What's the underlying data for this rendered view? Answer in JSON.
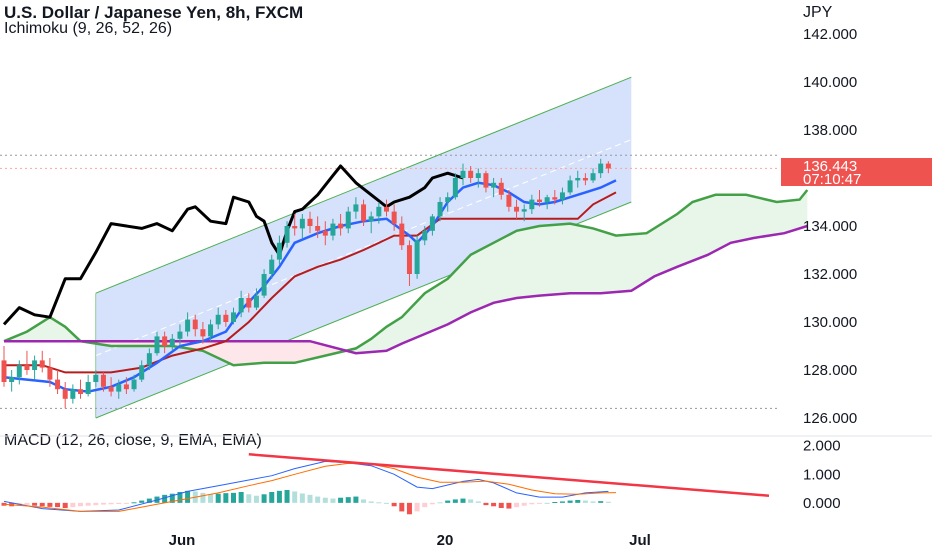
{
  "header": {
    "title": "U.S. Dollar / Japanese Yen, 8h, FXCM",
    "indicator": "Ichimoku (9, 26, 52, 26)",
    "macd_label": "MACD (12, 26, close, 9, EMA, EMA)",
    "currency": "JPY"
  },
  "current_price": {
    "price": "136.443",
    "countdown": "07:10:47"
  },
  "colors": {
    "up": "#26a69a",
    "down": "#ef5350",
    "conversion": "#2962ff",
    "base": "#b71c1c",
    "lagging": "#000000",
    "span_a": "#43a047",
    "span_b": "#9c27b0",
    "cloud_bull": "#e8f5e9",
    "cloud_bear": "#fde7ea",
    "channel": "#cfdcfb",
    "channel_edge": "#4caf50",
    "macd_line": "#2962ff",
    "signal_line": "#ff6d00",
    "trendline": "#f23645"
  },
  "chart_data": {
    "type": "candlestick",
    "price_axis": {
      "ticks": [
        "142.000",
        "140.000",
        "138.000",
        "136.000",
        "134.000",
        "132.000",
        "130.000",
        "128.000",
        "126.000"
      ],
      "range": [
        125.5,
        143.0
      ]
    },
    "time_axis": {
      "ticks": [
        "Jun",
        "20",
        "Jul"
      ]
    },
    "macd_axis": {
      "ticks": [
        "2.000",
        "1.000",
        "0.000"
      ],
      "range": [
        -0.6,
        2.2
      ]
    },
    "horizontal_lines": [
      136.95,
      136.4,
      126.4
    ],
    "ohlc": [
      [
        128.4,
        129.0,
        127.3,
        127.5
      ],
      [
        127.5,
        128.0,
        127.1,
        127.7
      ],
      [
        127.7,
        128.4,
        127.4,
        128.2
      ],
      [
        128.2,
        128.8,
        127.8,
        128.0
      ],
      [
        128.0,
        128.6,
        127.6,
        128.4
      ],
      [
        128.4,
        128.8,
        127.9,
        128.1
      ],
      [
        128.1,
        128.5,
        127.3,
        127.6
      ],
      [
        127.6,
        128.0,
        127.0,
        127.2
      ],
      [
        127.2,
        127.5,
        126.4,
        126.8
      ],
      [
        126.8,
        127.4,
        126.6,
        127.2
      ],
      [
        127.2,
        127.6,
        126.8,
        127.0
      ],
      [
        127.0,
        127.8,
        126.9,
        127.5
      ],
      [
        127.5,
        128.0,
        127.3,
        127.8
      ],
      [
        127.8,
        127.9,
        127.1,
        127.3
      ],
      [
        127.3,
        127.7,
        126.9,
        127.1
      ],
      [
        127.1,
        127.6,
        126.8,
        127.4
      ],
      [
        127.4,
        127.7,
        127.0,
        127.2
      ],
      [
        127.2,
        127.8,
        127.1,
        127.6
      ],
      [
        127.6,
        128.4,
        127.5,
        128.2
      ],
      [
        128.2,
        128.9,
        128.0,
        128.7
      ],
      [
        128.7,
        129.6,
        128.6,
        129.4
      ],
      [
        129.4,
        129.6,
        128.7,
        129.0
      ],
      [
        129.0,
        129.5,
        128.8,
        129.3
      ],
      [
        129.3,
        129.9,
        129.0,
        129.6
      ],
      [
        129.6,
        130.4,
        129.4,
        130.1
      ],
      [
        130.1,
        130.3,
        129.4,
        129.7
      ],
      [
        129.7,
        130.0,
        129.1,
        129.4
      ],
      [
        129.4,
        130.1,
        129.2,
        129.9
      ],
      [
        129.9,
        130.6,
        129.7,
        130.3
      ],
      [
        130.3,
        130.5,
        129.8,
        130.0
      ],
      [
        130.0,
        130.6,
        129.9,
        130.4
      ],
      [
        130.4,
        131.3,
        130.2,
        131.0
      ],
      [
        131.0,
        131.2,
        130.4,
        130.6
      ],
      [
        130.6,
        131.4,
        130.5,
        131.1
      ],
      [
        131.1,
        132.2,
        131.0,
        132.0
      ],
      [
        132.0,
        132.8,
        131.8,
        132.6
      ],
      [
        132.6,
        133.6,
        132.4,
        133.3
      ],
      [
        133.3,
        134.2,
        133.1,
        134.0
      ],
      [
        134.0,
        134.5,
        133.6,
        133.9
      ],
      [
        133.9,
        134.5,
        133.5,
        134.3
      ],
      [
        134.3,
        134.6,
        133.7,
        134.0
      ],
      [
        134.0,
        134.4,
        133.5,
        133.8
      ],
      [
        133.8,
        134.2,
        133.2,
        133.6
      ],
      [
        133.6,
        134.3,
        133.4,
        134.1
      ],
      [
        134.1,
        134.5,
        133.6,
        133.9
      ],
      [
        133.9,
        134.8,
        133.7,
        134.6
      ],
      [
        134.6,
        135.2,
        134.3,
        134.9
      ],
      [
        134.9,
        135.1,
        134.0,
        134.2
      ],
      [
        134.2,
        134.6,
        133.7,
        134.4
      ],
      [
        134.4,
        135.0,
        134.1,
        134.8
      ],
      [
        134.8,
        135.1,
        134.4,
        134.6
      ],
      [
        134.6,
        134.9,
        133.8,
        134.1
      ],
      [
        134.1,
        134.4,
        133.0,
        133.2
      ],
      [
        133.2,
        133.4,
        131.5,
        132.0
      ],
      [
        132.0,
        133.6,
        131.8,
        133.4
      ],
      [
        133.4,
        134.0,
        133.2,
        133.8
      ],
      [
        133.8,
        134.5,
        133.6,
        134.4
      ],
      [
        134.4,
        135.2,
        134.2,
        135.0
      ],
      [
        135.0,
        135.4,
        134.6,
        135.2
      ],
      [
        135.2,
        136.2,
        135.1,
        136.0
      ],
      [
        136.0,
        136.6,
        135.7,
        136.3
      ],
      [
        136.3,
        136.5,
        135.8,
        136.0
      ],
      [
        136.0,
        136.4,
        135.6,
        136.2
      ],
      [
        136.2,
        136.3,
        135.4,
        135.6
      ],
      [
        135.6,
        136.0,
        135.2,
        135.8
      ],
      [
        135.8,
        136.0,
        135.1,
        135.3
      ],
      [
        135.3,
        135.5,
        134.6,
        134.8
      ],
      [
        134.8,
        135.1,
        134.3,
        134.6
      ],
      [
        134.6,
        134.9,
        134.2,
        134.7
      ],
      [
        134.7,
        135.3,
        134.5,
        135.1
      ],
      [
        135.1,
        135.5,
        134.8,
        135.0
      ],
      [
        135.0,
        135.3,
        134.7,
        135.2
      ],
      [
        135.2,
        135.5,
        134.9,
        135.1
      ],
      [
        135.1,
        135.6,
        134.9,
        135.4
      ],
      [
        135.4,
        136.1,
        135.3,
        135.9
      ],
      [
        135.9,
        136.3,
        135.6,
        136.0
      ],
      [
        136.0,
        136.2,
        135.7,
        135.9
      ],
      [
        135.9,
        136.4,
        135.8,
        136.2
      ],
      [
        136.2,
        136.8,
        136.0,
        136.6
      ],
      [
        136.6,
        136.7,
        136.2,
        136.4
      ]
    ],
    "lagging_span": [
      [
        0,
        129.9
      ],
      [
        2,
        130.6
      ],
      [
        4,
        130.3
      ],
      [
        6,
        130.2
      ],
      [
        8,
        131.8
      ],
      [
        10,
        131.8
      ],
      [
        12,
        132.9
      ],
      [
        14,
        134.1
      ],
      [
        16,
        134.0
      ],
      [
        18,
        133.9
      ],
      [
        20,
        134.1
      ],
      [
        22,
        133.8
      ],
      [
        24,
        134.7
      ],
      [
        25,
        134.8
      ],
      [
        27,
        134.2
      ],
      [
        29,
        134.1
      ],
      [
        30,
        135.2
      ],
      [
        32,
        135.0
      ],
      [
        33,
        134.4
      ],
      [
        34,
        134.2
      ],
      [
        35,
        133.3
      ],
      [
        36,
        132.8
      ],
      [
        37,
        133.8
      ],
      [
        38,
        134.6
      ],
      [
        39,
        134.7
      ],
      [
        41,
        135.3
      ],
      [
        43,
        136.1
      ],
      [
        44,
        136.5
      ],
      [
        46,
        135.8
      ],
      [
        48,
        135.3
      ],
      [
        50,
        134.8
      ],
      [
        51,
        135.0
      ],
      [
        53,
        135.2
      ],
      [
        55,
        135.6
      ],
      [
        56,
        136.0
      ],
      [
        58,
        136.2
      ],
      [
        60,
        136.0
      ]
    ],
    "tenkan": [
      [
        0,
        127.7
      ],
      [
        3,
        127.6
      ],
      [
        6,
        127.5
      ],
      [
        8,
        127.2
      ],
      [
        11,
        127.1
      ],
      [
        14,
        127.3
      ],
      [
        17,
        127.7
      ],
      [
        20,
        128.3
      ],
      [
        23,
        129.0
      ],
      [
        26,
        129.2
      ],
      [
        29,
        129.6
      ],
      [
        31,
        130.5
      ],
      [
        34,
        131.5
      ],
      [
        36,
        132.3
      ],
      [
        38,
        133.3
      ],
      [
        41,
        133.7
      ],
      [
        44,
        134.0
      ],
      [
        47,
        134.2
      ],
      [
        50,
        134.3
      ],
      [
        53,
        133.6
      ],
      [
        54,
        133.3
      ],
      [
        56,
        134.0
      ],
      [
        58,
        135.0
      ],
      [
        60,
        135.6
      ],
      [
        62,
        135.8
      ],
      [
        64,
        135.7
      ],
      [
        66,
        135.4
      ],
      [
        68,
        135.0
      ],
      [
        70,
        134.9
      ],
      [
        72,
        135.0
      ],
      [
        74,
        135.2
      ],
      [
        76,
        135.4
      ],
      [
        78,
        135.6
      ],
      [
        80,
        135.9
      ]
    ],
    "kijun": [
      [
        0,
        128.2
      ],
      [
        5,
        128.2
      ],
      [
        8,
        127.9
      ],
      [
        14,
        127.9
      ],
      [
        18,
        128.1
      ],
      [
        22,
        128.6
      ],
      [
        26,
        128.9
      ],
      [
        29,
        129.2
      ],
      [
        32,
        130.0
      ],
      [
        35,
        131.0
      ],
      [
        38,
        131.9
      ],
      [
        41,
        132.3
      ],
      [
        44,
        132.6
      ],
      [
        47,
        133.0
      ],
      [
        51,
        133.6
      ],
      [
        54,
        133.6
      ],
      [
        57,
        134.3
      ],
      [
        60,
        134.3
      ],
      [
        64,
        134.3
      ],
      [
        68,
        134.3
      ],
      [
        72,
        134.3
      ],
      [
        75,
        134.3
      ],
      [
        77,
        134.9
      ],
      [
        80,
        135.4
      ]
    ],
    "senkou_a": [
      [
        0,
        129.2
      ],
      [
        3,
        129.6
      ],
      [
        6,
        130.2
      ],
      [
        8,
        129.8
      ],
      [
        10,
        129.2
      ],
      [
        14,
        129.0
      ],
      [
        18,
        129.0
      ],
      [
        22,
        129.0
      ],
      [
        26,
        128.8
      ],
      [
        30,
        128.2
      ],
      [
        34,
        128.3
      ],
      [
        38,
        128.3
      ],
      [
        42,
        128.6
      ],
      [
        46,
        128.9
      ],
      [
        48,
        129.3
      ],
      [
        50,
        129.8
      ],
      [
        52,
        130.2
      ],
      [
        55,
        131.2
      ],
      [
        58,
        131.8
      ],
      [
        61,
        132.8
      ],
      [
        64,
        133.3
      ],
      [
        67,
        133.8
      ],
      [
        70,
        134.0
      ],
      [
        74,
        134.1
      ],
      [
        77,
        133.9
      ],
      [
        80,
        133.6
      ],
      [
        84,
        133.7
      ],
      [
        88,
        134.5
      ],
      [
        90,
        135.0
      ],
      [
        93,
        135.3
      ],
      [
        97,
        135.3
      ],
      [
        101,
        135.0
      ],
      [
        104,
        135.1
      ],
      [
        105,
        135.5
      ]
    ],
    "senkou_b": [
      [
        0,
        129.2
      ],
      [
        20,
        129.2
      ],
      [
        30,
        129.2
      ],
      [
        40,
        129.2
      ],
      [
        46,
        128.7
      ],
      [
        50,
        128.8
      ],
      [
        52,
        129.1
      ],
      [
        55,
        129.5
      ],
      [
        58,
        129.9
      ],
      [
        61,
        130.4
      ],
      [
        64,
        130.8
      ],
      [
        67,
        131.0
      ],
      [
        70,
        131.1
      ],
      [
        74,
        131.2
      ],
      [
        78,
        131.2
      ],
      [
        82,
        131.3
      ],
      [
        85,
        131.9
      ],
      [
        88,
        132.3
      ],
      [
        92,
        132.8
      ],
      [
        95,
        133.3
      ],
      [
        98,
        133.5
      ],
      [
        102,
        133.7
      ],
      [
        105,
        134.0
      ]
    ],
    "channel": {
      "start_bar": 12,
      "end_bar": 82,
      "upper": [
        131.2,
        140.2
      ],
      "lower": [
        126.0,
        135.0
      ]
    },
    "macd_histogram": [
      -0.1,
      -0.12,
      -0.1,
      -0.08,
      -0.1,
      -0.12,
      -0.14,
      -0.15,
      -0.18,
      -0.15,
      -0.12,
      -0.1,
      -0.08,
      -0.06,
      -0.05,
      -0.04,
      -0.02,
      0.02,
      0.08,
      0.15,
      0.22,
      0.28,
      0.32,
      0.38,
      0.42,
      0.4,
      0.35,
      0.3,
      0.32,
      0.34,
      0.35,
      0.38,
      0.3,
      0.25,
      0.3,
      0.38,
      0.42,
      0.45,
      0.4,
      0.33,
      0.28,
      0.22,
      0.18,
      0.15,
      0.18,
      0.2,
      0.22,
      0.12,
      0.05,
      0.02,
      0.0,
      -0.12,
      -0.3,
      -0.4,
      -0.3,
      -0.15,
      -0.05,
      0.02,
      0.08,
      0.12,
      0.15,
      0.12,
      0.05,
      -0.08,
      -0.12,
      -0.18,
      -0.2,
      -0.15,
      -0.1,
      -0.05,
      -0.02,
      0.0,
      0.03,
      0.05,
      0.08,
      0.1,
      0.08,
      0.05,
      0.06,
      0.04
    ],
    "macd_line": [
      [
        0,
        0.05
      ],
      [
        5,
        -0.2
      ],
      [
        10,
        -0.3
      ],
      [
        15,
        -0.25
      ],
      [
        20,
        0.1
      ],
      [
        24,
        0.4
      ],
      [
        28,
        0.6
      ],
      [
        32,
        0.8
      ],
      [
        35,
        0.95
      ],
      [
        38,
        1.2
      ],
      [
        42,
        1.45
      ],
      [
        45,
        1.4
      ],
      [
        48,
        1.3
      ],
      [
        51,
        1.0
      ],
      [
        54,
        0.55
      ],
      [
        56,
        0.5
      ],
      [
        60,
        0.75
      ],
      [
        62,
        0.82
      ],
      [
        64,
        0.7
      ],
      [
        67,
        0.35
      ],
      [
        70,
        0.2
      ],
      [
        73,
        0.2
      ],
      [
        76,
        0.35
      ],
      [
        79,
        0.4
      ]
    ],
    "signal_line": [
      [
        0,
        -0.05
      ],
      [
        5,
        -0.15
      ],
      [
        10,
        -0.3
      ],
      [
        15,
        -0.3
      ],
      [
        20,
        -0.05
      ],
      [
        24,
        0.15
      ],
      [
        28,
        0.35
      ],
      [
        32,
        0.6
      ],
      [
        35,
        0.78
      ],
      [
        38,
        1.0
      ],
      [
        42,
        1.28
      ],
      [
        45,
        1.38
      ],
      [
        48,
        1.35
      ],
      [
        51,
        1.2
      ],
      [
        54,
        0.9
      ],
      [
        57,
        0.72
      ],
      [
        60,
        0.72
      ],
      [
        63,
        0.76
      ],
      [
        66,
        0.65
      ],
      [
        69,
        0.45
      ],
      [
        72,
        0.32
      ],
      [
        75,
        0.3
      ],
      [
        78,
        0.35
      ],
      [
        80,
        0.36
      ]
    ],
    "macd_trendline": [
      [
        32,
        1.7
      ],
      [
        100,
        0.25
      ]
    ]
  }
}
